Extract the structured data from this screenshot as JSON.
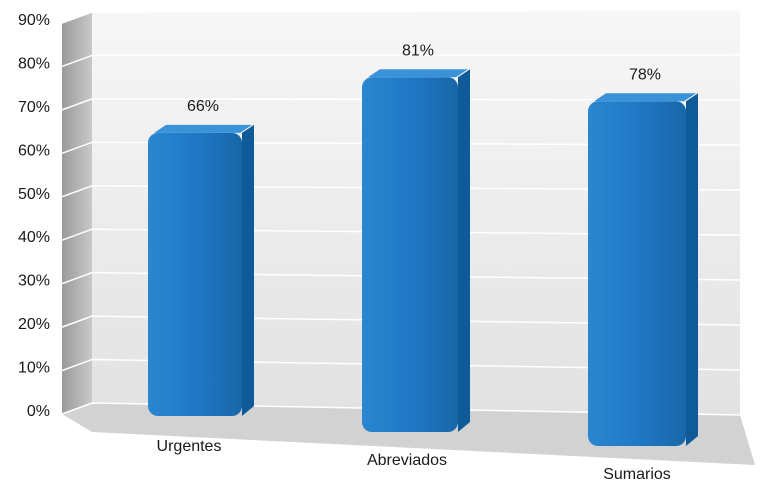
{
  "chart_data": {
    "type": "bar",
    "categories": [
      "Urgentes",
      "Abreviados",
      "Sumarios"
    ],
    "values": [
      66,
      81,
      78
    ],
    "data_labels": [
      "66%",
      "81%",
      "78%"
    ],
    "ylim": [
      0,
      90
    ],
    "yticks": [
      0,
      10,
      20,
      30,
      40,
      50,
      60,
      70,
      80,
      90
    ],
    "ytick_labels": [
      "0%",
      "10%",
      "20%",
      "30%",
      "40%",
      "50%",
      "60%",
      "70%",
      "80%",
      "90%"
    ],
    "title": "",
    "xlabel": "",
    "ylabel": "",
    "grid": true,
    "legend": "none",
    "style": "3d",
    "colors": {
      "bar_front": "#1f77c4",
      "bar_side": "#0f5a98",
      "bar_top": "#3a92d8",
      "wall": "#e9e9e9",
      "floor": "#d2d2d2",
      "grid": "#ffffff"
    }
  }
}
